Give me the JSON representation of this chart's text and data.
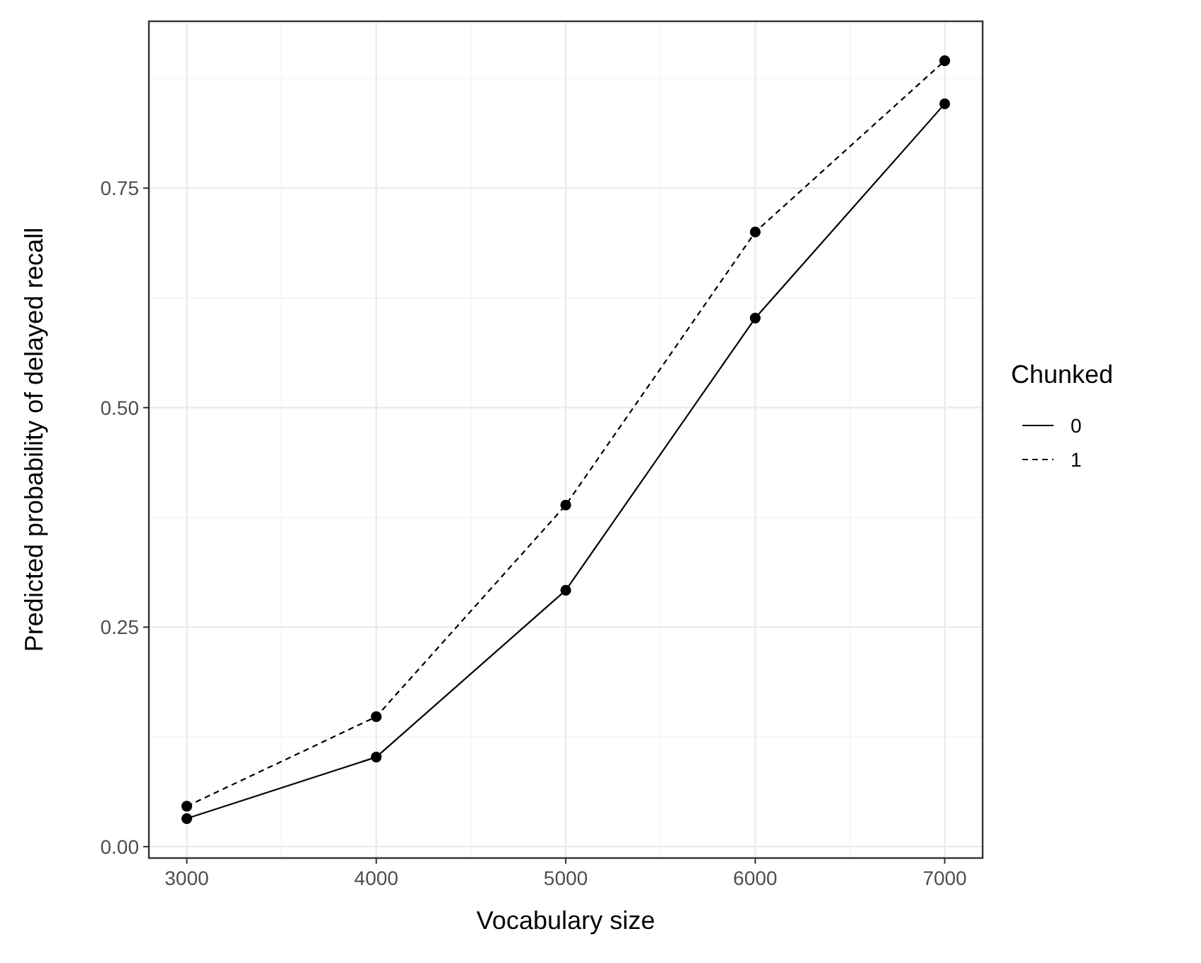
{
  "chart_data": {
    "type": "line",
    "xlabel": "Vocabulary size",
    "ylabel": "Predicted probability of delayed recall",
    "legend_title": "Chunked",
    "x": [
      3000,
      4000,
      5000,
      6000,
      7000
    ],
    "series": [
      {
        "name": "0",
        "color": "#000000",
        "line_style": "solid",
        "values": [
          0.032,
          0.102,
          0.292,
          0.602,
          0.846
        ]
      },
      {
        "name": "1",
        "color": "#000000",
        "line_style": "dashed",
        "values": [
          0.046,
          0.148,
          0.389,
          0.7,
          0.895
        ]
      }
    ],
    "xlim": [
      2800,
      7200
    ],
    "xticks": [
      3000,
      4000,
      5000,
      6000,
      7000
    ],
    "ylim": [
      -0.013,
      0.94
    ],
    "yticks": [
      {
        "value": 0,
        "label": "0.00"
      },
      {
        "value": 0.25,
        "label": "0.25"
      },
      {
        "value": 0.5,
        "label": "0.50"
      },
      {
        "value": 0.75,
        "label": "0.75"
      }
    ],
    "grid": true,
    "legend": "right",
    "marker": "circle"
  }
}
